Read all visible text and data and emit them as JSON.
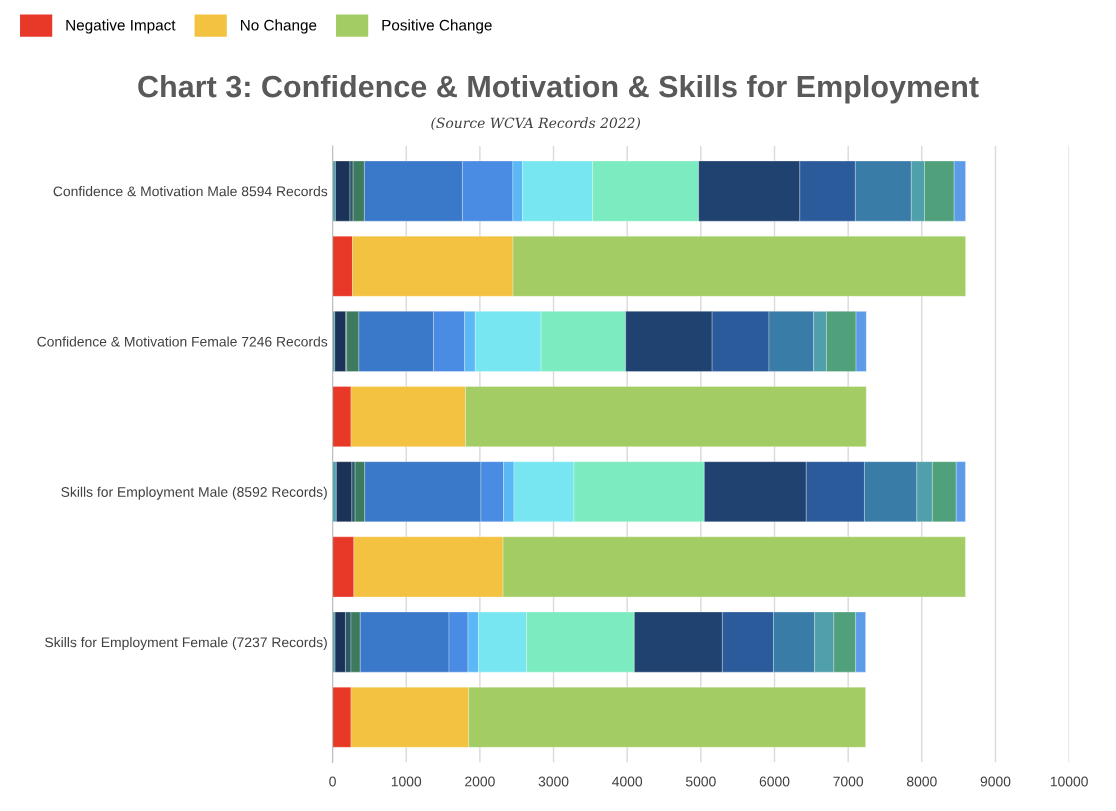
{
  "chart_data": {
    "type": "bar",
    "orientation": "horizontal",
    "stacked": true,
    "title": "Chart 3: Confidence & Motivation & Skills for Employment",
    "subtitle": "(Source WCVA Records 2022)",
    "categories": [
      "Confidence & Motivation Male 8594 Records",
      null,
      "Confidence & Motivation Female 7246 Records",
      null,
      "Skills for Employment Male (8592 Records)",
      null,
      "Skills for Employment Female (7237 Records)",
      null
    ],
    "series": [
      {
        "color": "#4fa3b0",
        "values": [
          39,
          null,
          30,
          null,
          51,
          null,
          34,
          null
        ]
      },
      {
        "color": "#1b3358",
        "values": [
          197,
          null,
          149,
          null,
          211,
          null,
          141,
          null
        ]
      },
      {
        "color": "#2a5a6a",
        "values": [
          43,
          null,
          13,
          null,
          44,
          null,
          75,
          null
        ]
      },
      {
        "color": "#3d7a5e",
        "values": [
          153,
          null,
          165,
          null,
          131,
          null,
          126,
          null
        ]
      },
      {
        "color": "#3a78c9",
        "values": [
          1331,
          null,
          1013,
          null,
          1577,
          null,
          1205,
          null
        ]
      },
      {
        "color": "#4a8be3",
        "values": [
          685,
          null,
          423,
          null,
          307,
          null,
          257,
          null
        ]
      },
      {
        "color": "#5cb8f5",
        "values": [
          131,
          null,
          144,
          null,
          142,
          null,
          143,
          null
        ]
      },
      {
        "color": "#78e6f0",
        "values": [
          951,
          null,
          894,
          null,
          814,
          null,
          654,
          null
        ]
      },
      {
        "color": "#7cecc0",
        "values": [
          1440,
          null,
          1148,
          null,
          1770,
          null,
          1462,
          null
        ]
      },
      {
        "color": "#1f4270",
        "values": [
          1374,
          null,
          1174,
          null,
          1384,
          null,
          1195,
          null
        ]
      },
      {
        "color": "#2b5b9b",
        "values": [
          754,
          null,
          772,
          null,
          790,
          null,
          694,
          null
        ]
      },
      {
        "color": "#3a7ca8",
        "values": [
          759,
          null,
          606,
          null,
          711,
          null,
          559,
          null
        ]
      },
      {
        "color": "#4fa0aa",
        "values": [
          180,
          null,
          174,
          null,
          211,
          null,
          261,
          null
        ]
      },
      {
        "color": "#50a07c",
        "values": [
          402,
          null,
          402,
          null,
          324,
          null,
          296,
          null
        ]
      },
      {
        "color": "#5b9be8",
        "values": [
          155,
          null,
          139,
          null,
          125,
          null,
          135,
          null
        ]
      },
      {
        "name": "Negative Impact",
        "color": "#e83828",
        "values": [
          null,
          270,
          null,
          250,
          null,
          289,
          null,
          250
        ]
      },
      {
        "name": "No Change",
        "color": "#f3c240",
        "values": [
          null,
          2180,
          null,
          1556,
          null,
          2026,
          null,
          1599
        ]
      },
      {
        "name": "Positive Change",
        "color": "#a3cd64",
        "values": [
          null,
          6144,
          null,
          5440,
          null,
          6277,
          null,
          5388
        ]
      }
    ],
    "xlim": [
      0,
      10000
    ],
    "xticks": [
      0,
      1000,
      2000,
      3000,
      4000,
      5000,
      6000,
      7000,
      8000,
      9000,
      10000
    ],
    "grid": "x",
    "legend": "top left"
  }
}
